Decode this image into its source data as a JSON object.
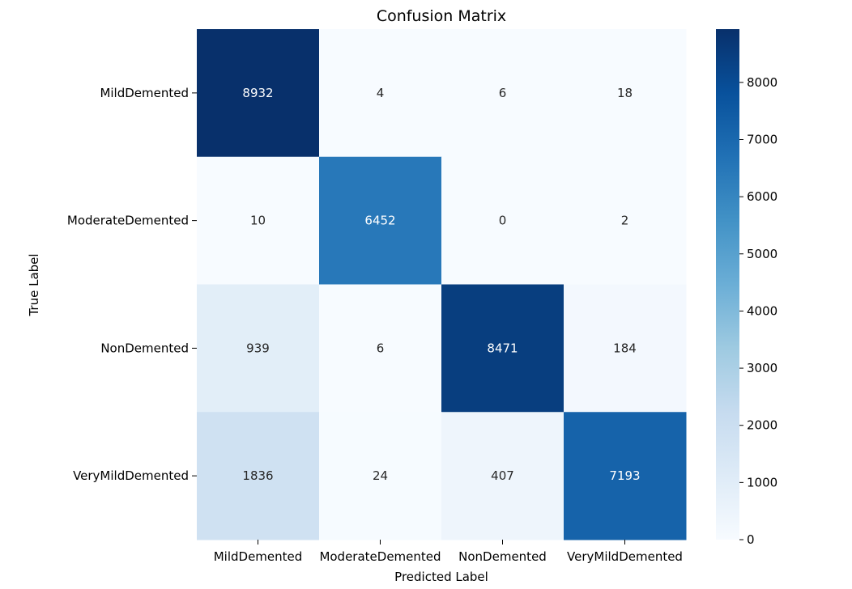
{
  "chart_data": {
    "type": "heatmap",
    "title": "Confusion Matrix",
    "xlabel": "Predicted Label",
    "ylabel": "True Label",
    "x_categories": [
      "MildDemented",
      "ModerateDemented",
      "NonDemented",
      "VeryMildDemented"
    ],
    "y_categories": [
      "MildDemented",
      "ModerateDemented",
      "NonDemented",
      "VeryMildDemented"
    ],
    "values": [
      [
        8932,
        4,
        6,
        18
      ],
      [
        10,
        6452,
        0,
        2
      ],
      [
        939,
        6,
        8471,
        184
      ],
      [
        1836,
        24,
        407,
        7193
      ]
    ],
    "colormap": "Blues",
    "vmin": 0,
    "vmax": 8932,
    "colorbar_ticks": [
      0,
      1000,
      2000,
      3000,
      4000,
      5000,
      6000,
      7000,
      8000
    ]
  }
}
